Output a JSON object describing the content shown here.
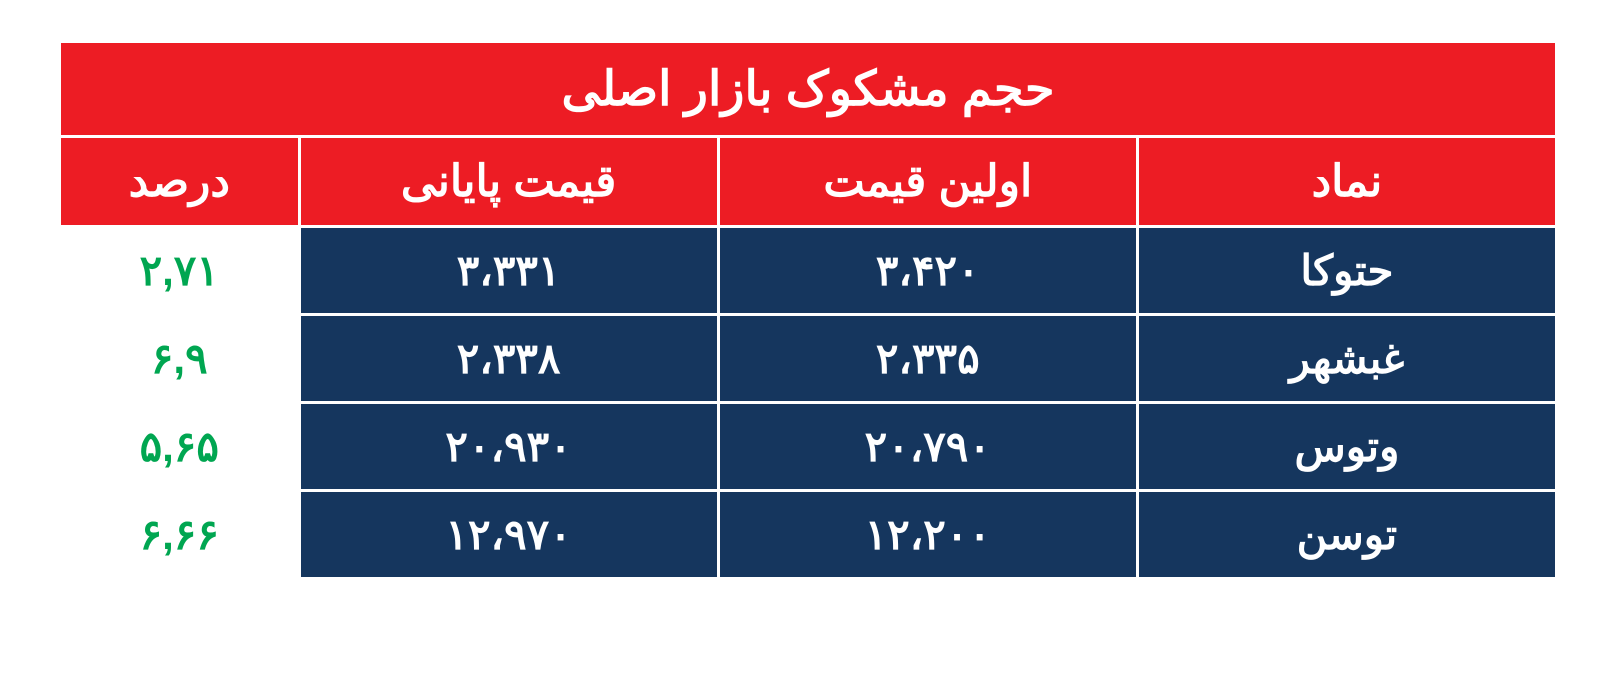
{
  "table": {
    "title": "حجم مشکوک بازار اصلی",
    "headers": {
      "symbol": "نماد",
      "first_price": "اولین قیمت",
      "last_price": "قیمت پایانی",
      "percent": "درصد"
    },
    "rows": [
      {
        "symbol": "حتوکا",
        "first_price": "۳،۴۲۰",
        "last_price": "۳،۳۳۱",
        "percent": "۲,۷۱"
      },
      {
        "symbol": "غبشهر",
        "first_price": "۲،۳۳۵",
        "last_price": "۲،۳۳۸",
        "percent": "۶,۹"
      },
      {
        "symbol": "وتوس",
        "first_price": "۲۰،۷۹۰",
        "last_price": "۲۰،۹۳۰",
        "percent": "۵,۶۵"
      },
      {
        "symbol": "توسن",
        "first_price": "۱۲،۲۰۰",
        "last_price": "۱۲،۹۷۰",
        "percent": "۶,۶۶"
      }
    ],
    "colors": {
      "header_bg": "#ed1c24",
      "header_text": "#ffffff",
      "data_bg": "#15365e",
      "data_text": "#ffffff",
      "percent_bg": "#ffffff",
      "percent_text": "#00a651",
      "border": "#ffffff"
    }
  }
}
